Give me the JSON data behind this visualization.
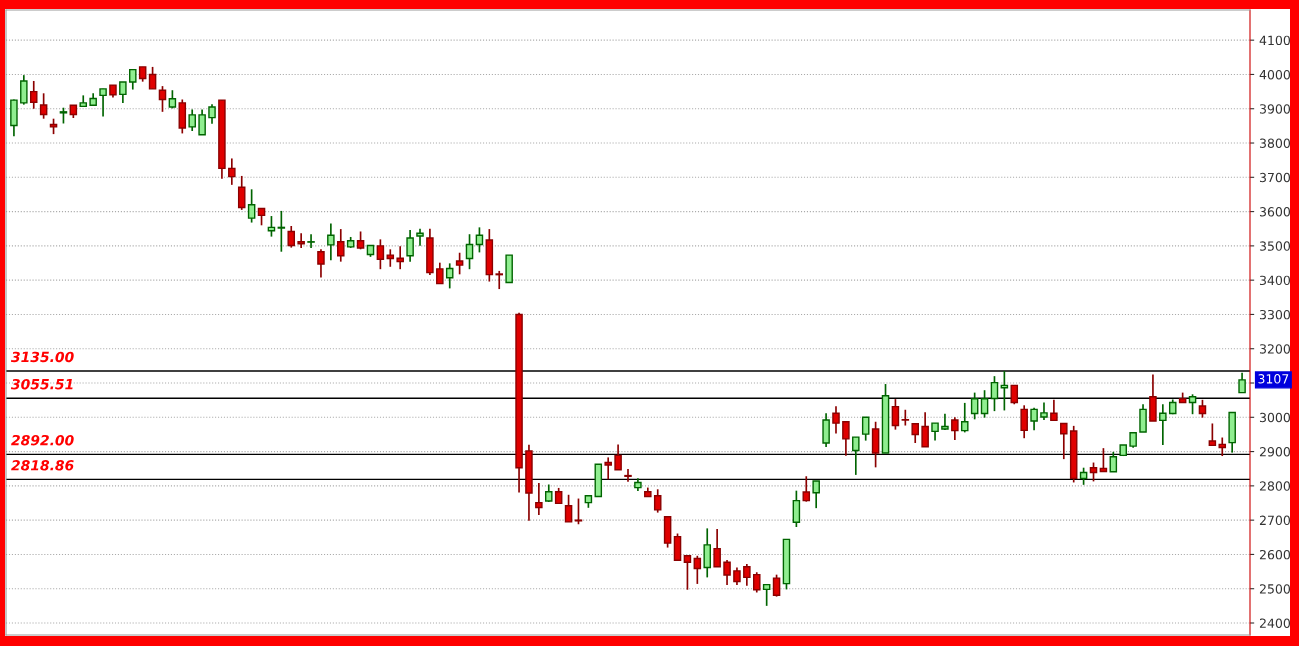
{
  "chart_data": {
    "type": "candlestick",
    "categories": [
      null,
      null,
      null,
      null,
      null,
      null,
      null,
      null,
      null,
      null,
      null,
      null,
      null,
      null,
      null,
      null,
      null,
      null,
      null,
      null,
      null,
      null,
      null,
      null,
      null,
      null,
      null,
      null,
      null,
      null,
      null,
      null,
      null,
      null,
      null,
      null,
      null,
      null,
      null,
      null,
      null,
      null,
      null,
      null,
      null,
      null,
      null,
      null,
      null,
      null,
      null,
      null,
      null,
      null,
      null,
      null,
      null,
      null,
      null,
      null,
      null,
      null,
      null,
      null,
      null,
      null,
      null,
      null,
      null,
      null,
      null,
      null,
      null,
      null,
      null,
      null,
      null,
      null,
      null,
      null,
      null,
      null,
      null,
      null,
      null,
      null,
      null,
      null,
      null,
      null,
      null,
      null,
      null,
      null,
      null,
      null,
      null,
      null,
      null,
      null,
      null,
      null,
      null,
      null,
      null,
      null,
      null,
      null,
      null,
      null,
      null,
      null,
      null,
      null,
      null,
      null,
      null,
      null,
      null,
      null,
      null,
      null,
      null,
      null,
      null
    ],
    "ohlc": [
      [
        3851,
        3927,
        3820,
        3925
      ],
      [
        3917,
        3998,
        3912,
        3981
      ],
      [
        3950,
        3981,
        3900,
        3919
      ],
      [
        3911,
        3945,
        3871,
        3883
      ],
      [
        3854,
        3871,
        3826,
        3847
      ],
      [
        3888,
        3903,
        3857,
        3891
      ],
      [
        3910,
        3910,
        3873,
        3883
      ],
      [
        3907,
        3939,
        3907,
        3917
      ],
      [
        3910,
        3945,
        3910,
        3930
      ],
      [
        3939,
        3958,
        3877,
        3958
      ],
      [
        3969,
        3969,
        3933,
        3941
      ],
      [
        3942,
        3978,
        3917,
        3978
      ],
      [
        3978,
        4014,
        3956,
        4014
      ],
      [
        4022,
        4022,
        3979,
        3988
      ],
      [
        4000,
        4022,
        3958,
        3958
      ],
      [
        3954,
        3966,
        3891,
        3927
      ],
      [
        3905,
        3954,
        3901,
        3929
      ],
      [
        3917,
        3927,
        3828,
        3844
      ],
      [
        3847,
        3898,
        3835,
        3882
      ],
      [
        3824,
        3898,
        3824,
        3882
      ],
      [
        3874,
        3913,
        3856,
        3905
      ],
      [
        3925,
        3925,
        3696,
        3726
      ],
      [
        3726,
        3755,
        3678,
        3702
      ],
      [
        3671,
        3704,
        3605,
        3612
      ],
      [
        3581,
        3665,
        3568,
        3620
      ],
      [
        3609,
        3609,
        3560,
        3589
      ],
      [
        3544,
        3587,
        3527,
        3554
      ],
      [
        3552,
        3602,
        3483,
        3554
      ],
      [
        3542,
        3558,
        3495,
        3501
      ],
      [
        3512,
        3537,
        3494,
        3506
      ],
      [
        3511,
        3534,
        3494,
        3512
      ],
      [
        3483,
        3490,
        3408,
        3447
      ],
      [
        3503,
        3565,
        3458,
        3531
      ],
      [
        3512,
        3549,
        3454,
        3471
      ],
      [
        3497,
        3526,
        3494,
        3515
      ],
      [
        3515,
        3542,
        3490,
        3494
      ],
      [
        3475,
        3501,
        3468,
        3501
      ],
      [
        3500,
        3519,
        3432,
        3461
      ],
      [
        3473,
        3490,
        3439,
        3463
      ],
      [
        3464,
        3499,
        3432,
        3454
      ],
      [
        3471,
        3546,
        3454,
        3523
      ],
      [
        3529,
        3550,
        3500,
        3537
      ],
      [
        3523,
        3550,
        3415,
        3422
      ],
      [
        3433,
        3451,
        3390,
        3390
      ],
      [
        3407,
        3449,
        3376,
        3434
      ],
      [
        3456,
        3480,
        3417,
        3444
      ],
      [
        3463,
        3534,
        3432,
        3504
      ],
      [
        3504,
        3554,
        3481,
        3531
      ],
      [
        3517,
        3549,
        3396,
        3416
      ],
      [
        3418,
        3427,
        3374,
        3416
      ],
      [
        3393,
        3473,
        3393,
        3473
      ],
      [
        3300,
        3305,
        2781,
        2853
      ],
      [
        2902,
        2920,
        2698,
        2779
      ],
      [
        2751,
        2808,
        2715,
        2737
      ],
      [
        2756,
        2804,
        2753,
        2783
      ],
      [
        2783,
        2794,
        2749,
        2749
      ],
      [
        2742,
        2774,
        2695,
        2695
      ],
      [
        2700,
        2763,
        2688,
        2698
      ],
      [
        2751,
        2773,
        2736,
        2771
      ],
      [
        2769,
        2863,
        2769,
        2863
      ],
      [
        2868,
        2883,
        2819,
        2861
      ],
      [
        2889,
        2921,
        2847,
        2847
      ],
      [
        2830,
        2849,
        2812,
        2828
      ],
      [
        2795,
        2822,
        2785,
        2810
      ],
      [
        2783,
        2795,
        2768,
        2769
      ],
      [
        2771,
        2790,
        2722,
        2730
      ],
      [
        2710,
        2710,
        2620,
        2633
      ],
      [
        2652,
        2661,
        2583,
        2583
      ],
      [
        2596,
        2596,
        2497,
        2577
      ],
      [
        2588,
        2596,
        2514,
        2559
      ],
      [
        2562,
        2676,
        2533,
        2628
      ],
      [
        2617,
        2674,
        2564,
        2564
      ],
      [
        2577,
        2584,
        2511,
        2540
      ],
      [
        2552,
        2562,
        2511,
        2521
      ],
      [
        2564,
        2572,
        2509,
        2533
      ],
      [
        2541,
        2548,
        2489,
        2497
      ],
      [
        2498,
        2512,
        2450,
        2512
      ],
      [
        2531,
        2541,
        2477,
        2481
      ],
      [
        2515,
        2644,
        2498,
        2644
      ],
      [
        2694,
        2786,
        2680,
        2757
      ],
      [
        2782,
        2828,
        2754,
        2757
      ],
      [
        2780,
        2814,
        2735,
        2814
      ],
      [
        2925,
        3012,
        2913,
        2992
      ],
      [
        3012,
        3032,
        2953,
        2983
      ],
      [
        2987,
        2987,
        2888,
        2937
      ],
      [
        2903,
        2942,
        2832,
        2942
      ],
      [
        2951,
        3000,
        2932,
        3000
      ],
      [
        2966,
        2987,
        2854,
        2896
      ],
      [
        2896,
        3097,
        2896,
        3063
      ],
      [
        3031,
        3053,
        2964,
        2976
      ],
      [
        2993,
        3022,
        2976,
        2992
      ],
      [
        2981,
        2981,
        2925,
        2950
      ],
      [
        2973,
        3015,
        2914,
        2914
      ],
      [
        2959,
        2983,
        2932,
        2983
      ],
      [
        2966,
        3010,
        2963,
        2973
      ],
      [
        2992,
        3000,
        2934,
        2961
      ],
      [
        2961,
        3042,
        2956,
        2987
      ],
      [
        3011,
        3072,
        2994,
        3054
      ],
      [
        3011,
        3079,
        2999,
        3054
      ],
      [
        3055,
        3120,
        3018,
        3101
      ],
      [
        3086,
        3135,
        3020,
        3093
      ],
      [
        3093,
        3093,
        3038,
        3043
      ],
      [
        3023,
        3035,
        2939,
        2962
      ],
      [
        2989,
        3028,
        2962,
        3023
      ],
      [
        3001,
        3043,
        2992,
        3013
      ],
      [
        3012,
        3051,
        2991,
        2991
      ],
      [
        2982,
        2982,
        2878,
        2952
      ],
      [
        2960,
        2975,
        2810,
        2822
      ],
      [
        2822,
        2853,
        2803,
        2839
      ],
      [
        2853,
        2868,
        2813,
        2839
      ],
      [
        2851,
        2910,
        2842,
        2842
      ],
      [
        2841,
        2899,
        2841,
        2885
      ],
      [
        2889,
        2919,
        2887,
        2919
      ],
      [
        2916,
        2955,
        2911,
        2955
      ],
      [
        2957,
        3038,
        2957,
        3023
      ],
      [
        3060,
        3125,
        2989,
        2989
      ],
      [
        2991,
        3038,
        2919,
        3012
      ],
      [
        3011,
        3052,
        3009,
        3043
      ],
      [
        3054,
        3072,
        3043,
        3043
      ],
      [
        3043,
        3067,
        3009,
        3060
      ],
      [
        3033,
        3051,
        2999,
        3011
      ],
      [
        2931,
        2982,
        2918,
        2918
      ],
      [
        2921,
        2941,
        2887,
        2912
      ],
      [
        2926,
        3014,
        2897,
        3014
      ],
      [
        3072,
        3130,
        3072,
        3109
      ]
    ],
    "ylim": [
      2365,
      4188
    ],
    "yticks": [
      2400,
      2500,
      2600,
      2700,
      2800,
      2900,
      3000,
      {
        "value": 3100,
        "label": null
      },
      3200,
      3300,
      3400,
      3500,
      3600,
      3700,
      3800,
      3900,
      4000,
      4100
    ],
    "grid": "y",
    "ref_lines": [
      {
        "axis": "y",
        "value": 3135,
        "label": "3135.00",
        "color": "#000000"
      },
      {
        "axis": "y",
        "value": 3055.51,
        "label": "3055.51",
        "color": "#000000"
      },
      {
        "axis": "y",
        "value": 2892,
        "label": "2892.00",
        "color": "#000000"
      },
      {
        "axis": "y",
        "value": 2818.86,
        "label": "2818.86",
        "color": "#000000"
      }
    ],
    "annotations": [
      "3107"
    ]
  }
}
